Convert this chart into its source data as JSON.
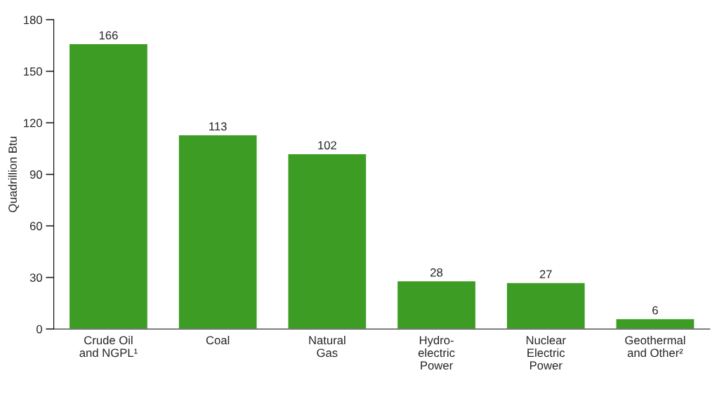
{
  "chart_data": {
    "type": "bar",
    "ylabel": "Quadrillion Btu",
    "categories": [
      "Crude Oil\nand NGPL¹",
      "Coal",
      "Natural\nGas",
      "Hydro-\nelectric\nPower",
      "Nuclear\nElectric\nPower",
      "Geothermal\nand Other²"
    ],
    "values": [
      166,
      113,
      102,
      28,
      27,
      6
    ],
    "color": "#3c9c23",
    "ylim": [
      0,
      180
    ],
    "yticks": [
      0,
      30,
      60,
      90,
      120,
      150,
      180
    ],
    "grid": false,
    "data_labels": true
  }
}
